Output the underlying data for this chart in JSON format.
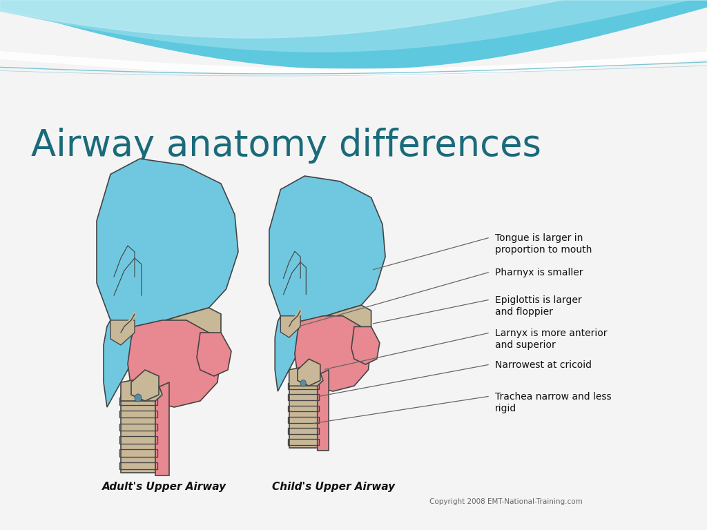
{
  "title": "Airway anatomy differences",
  "title_color": "#1a6b7a",
  "title_fontsize": 38,
  "bg_color": "#f4f4f4",
  "wave_color_dark": "#5ec8de",
  "wave_color_mid": "#8ad8e8",
  "wave_color_light": "#b8eaf2",
  "adult_label": "Adult's Upper Airway",
  "child_label": "Child's Upper Airway",
  "annotations": [
    "Tongue is larger in\nproportion to mouth",
    "Pharnyx is smaller",
    "Epiglottis is larger\nand floppier",
    "Larnyx is more anterior\nand superior",
    "Narrowest at cricoid",
    "Trachea narrow and less\nrigid"
  ],
  "copyright": "Copyright 2008 EMT-National-Training.com",
  "blue_color": "#70c8e0",
  "pink_color": "#e88890",
  "tan_color": "#c8b898",
  "outline_color": "#444444",
  "label_fontsize": 11,
  "annotation_fontsize": 10
}
